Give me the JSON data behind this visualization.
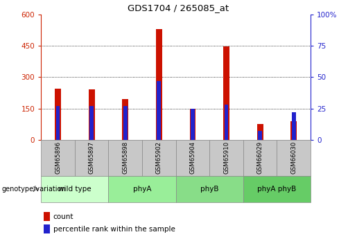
{
  "title": "GDS1704 / 265085_at",
  "samples": [
    "GSM65896",
    "GSM65897",
    "GSM65898",
    "GSM65902",
    "GSM65904",
    "GSM65910",
    "GSM66029",
    "GSM66030"
  ],
  "counts": [
    245,
    240,
    195,
    530,
    148,
    448,
    75,
    90
  ],
  "percentile_ranks": [
    27,
    27,
    27,
    47,
    25,
    28,
    7,
    22
  ],
  "groups": [
    {
      "label": "wild type",
      "span": [
        0,
        2
      ],
      "color": "#ccffcc"
    },
    {
      "label": "phyA",
      "span": [
        2,
        4
      ],
      "color": "#99ee99"
    },
    {
      "label": "phyB",
      "span": [
        4,
        6
      ],
      "color": "#88dd88"
    },
    {
      "label": "phyA phyB",
      "span": [
        6,
        8
      ],
      "color": "#66cc66"
    }
  ],
  "bar_color_red": "#cc1100",
  "bar_color_blue": "#2222cc",
  "ylim_left": [
    0,
    600
  ],
  "ylim_right": [
    0,
    100
  ],
  "yticks_left": [
    0,
    150,
    300,
    450,
    600
  ],
  "yticks_right": [
    0,
    25,
    50,
    75,
    100
  ],
  "red_bar_width": 0.18,
  "blue_bar_width": 0.12,
  "tick_label_color_left": "#cc2200",
  "tick_label_color_right": "#2222cc",
  "background_color": "#ffffff",
  "sample_cell_color": "#c8c8c8",
  "genotype_label": "genotype/variation"
}
